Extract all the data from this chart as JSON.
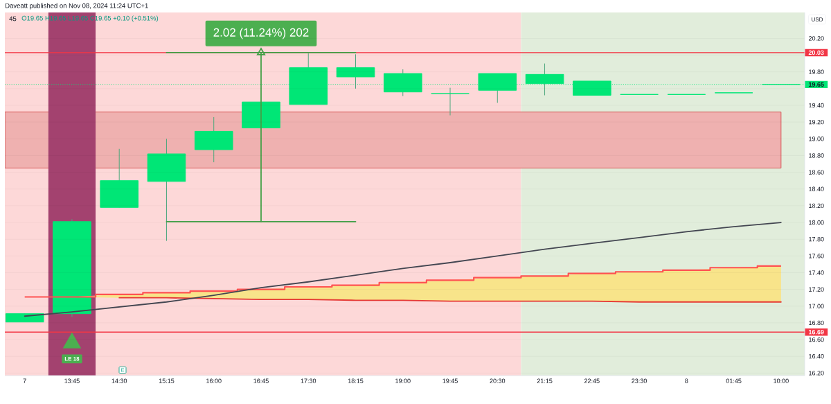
{
  "chart_data": {
    "type": "candlestick",
    "title": "45",
    "subtitle": "O19.65 H19.65 L19.65 C19.65 +0.10 (+0.51%)",
    "ylabel": "USD",
    "categories": [
      "7",
      "13:45",
      "14:30",
      "15:15",
      "16:00",
      "16:45",
      "17:30",
      "18:15",
      "19:00",
      "19:45",
      "20:30",
      "21:15",
      "22:45",
      "23:30",
      "8",
      "01:45",
      "10:00"
    ],
    "ohlc": [
      [
        16.81,
        16.91,
        16.81,
        16.91
      ],
      [
        16.91,
        18.04,
        16.87,
        18.01
      ],
      [
        18.18,
        18.88,
        18.18,
        18.5
      ],
      [
        18.49,
        19.0,
        17.78,
        18.82
      ],
      [
        18.87,
        19.26,
        18.72,
        19.09
      ],
      [
        19.13,
        19.44,
        19.13,
        19.44
      ],
      [
        19.41,
        20.02,
        19.41,
        19.85
      ],
      [
        19.74,
        20.01,
        19.6,
        19.85
      ],
      [
        19.56,
        19.83,
        19.51,
        19.78
      ],
      [
        19.54,
        19.61,
        19.28,
        19.54
      ],
      [
        19.58,
        19.78,
        19.43,
        19.78
      ],
      [
        19.66,
        19.9,
        19.52,
        19.77
      ],
      [
        19.52,
        19.69,
        19.52,
        19.69
      ],
      [
        19.53,
        19.53,
        19.53,
        19.53
      ],
      [
        19.53,
        19.53,
        19.53,
        19.53
      ],
      [
        19.55,
        19.55,
        19.55,
        19.55
      ],
      [
        19.65,
        19.65,
        19.65,
        19.65
      ]
    ],
    "color": "#00e676",
    "series": [
      {
        "type": "step",
        "color": "#ff5252",
        "values": [
          17.11,
          17.11,
          17.14,
          17.16,
          17.18,
          17.2,
          17.23,
          17.25,
          17.28,
          17.31,
          17.34,
          17.36,
          17.39,
          17.41,
          17.43,
          17.46,
          17.48
        ],
        "lower": [
          17.11,
          17.11,
          17.1,
          17.1,
          17.09,
          17.08,
          17.08,
          17.07,
          17.07,
          17.06,
          17.06,
          17.06,
          17.06,
          17.05,
          17.05,
          17.05,
          17.05
        ],
        "upper": [
          17.11,
          17.11,
          17.14,
          17.16,
          17.18,
          17.2,
          17.23,
          17.25,
          17.28,
          17.31,
          17.34,
          17.36,
          17.39,
          17.41,
          17.43,
          17.46,
          17.48
        ]
      },
      {
        "type": "line",
        "color": "#e53935",
        "values": [
          null,
          null,
          17.1,
          17.1,
          17.09,
          17.08,
          17.08,
          17.07,
          17.07,
          17.06,
          17.06,
          17.06,
          17.06,
          17.05,
          17.05,
          17.05,
          17.05
        ]
      },
      {
        "type": "line",
        "color": "#434651",
        "values": [
          16.88,
          16.93,
          16.99,
          17.05,
          17.13,
          17.22,
          17.29,
          17.37,
          17.45,
          17.52,
          17.6,
          17.68,
          17.75,
          17.82,
          17.89,
          17.95,
          18.0
        ]
      },
      {
        "type": "line",
        "color": "#43a047",
        "x": [
          "15:15",
          "18:15"
        ],
        "values": [
          18.01,
          18.01
        ]
      },
      {
        "type": "line",
        "color": "#43a047",
        "x": [
          "15:15",
          "18:15"
        ],
        "values": [
          20.03,
          20.03
        ]
      },
      {
        "type": "scatter",
        "color": "#43a047",
        "marker": "triangle",
        "x": [
          "16:45"
        ],
        "values": [
          20.03
        ],
        "errors": [
          [
            18.01,
            20.03
          ]
        ]
      },
      {
        "type": "scatter",
        "color": "#4caf50",
        "marker": "triangle",
        "x": [
          "13:45"
        ],
        "values": [
          16.56
        ]
      }
    ],
    "ylim": [
      16.17,
      20.51
    ],
    "yticks": [
      {
        "value": 16.2,
        "label": "16.20"
      },
      {
        "value": 16.4,
        "label": "16.40"
      },
      {
        "value": 16.6,
        "label": "16.60"
      },
      {
        "value": 16.8,
        "label": "16.80"
      },
      {
        "value": 17.0,
        "label": "17.00"
      },
      {
        "value": 17.2,
        "label": "17.20"
      },
      {
        "value": 17.4,
        "label": "17.40"
      },
      {
        "value": 17.6,
        "label": "17.60"
      },
      {
        "value": 17.8,
        "label": "17.80"
      },
      {
        "value": 18.0,
        "label": "18.00"
      },
      {
        "value": 18.2,
        "label": "18.20"
      },
      {
        "value": 18.4,
        "label": "18.40"
      },
      {
        "value": 18.6,
        "label": "18.60"
      },
      {
        "value": 18.8,
        "label": "18.80"
      },
      {
        "value": 19.0,
        "label": "19.00"
      },
      {
        "value": 19.2,
        "label": "19.20"
      },
      {
        "value": 19.4,
        "label": "19.40"
      },
      {
        "value": 19.6,
        "label": null
      },
      {
        "value": 19.8,
        "label": "19.80"
      },
      {
        "value": 20.0,
        "label": null
      },
      {
        "value": 20.2,
        "label": "20.20"
      }
    ],
    "grid": "y",
    "ref_lines": [
      {
        "axis": "y",
        "value": 20.03,
        "label": "20.03",
        "color": "#f23645",
        "line_style": "solid"
      },
      {
        "axis": "y",
        "value": 16.69,
        "label": "16.69",
        "color": "#f23645",
        "line_style": "solid"
      },
      {
        "axis": "y",
        "value": 19.65,
        "label": "19.65",
        "color": "#00e676",
        "line_style": "dotted"
      }
    ],
    "bands": [
      {
        "axis": "x",
        "from": "7",
        "to": "20:30",
        "color": "#fdd8d8"
      },
      {
        "axis": "x",
        "from": "21:15",
        "to": "10:00",
        "color": "#e1eddb"
      },
      {
        "axis": "y",
        "from": 18.65,
        "to": 19.32,
        "color": "#efb1b0"
      },
      {
        "axis": "x",
        "from": "13:45",
        "to": "13:45",
        "color": "#a3426f"
      }
    ],
    "annotations": [
      "Daveatt published on Nov 08, 2024 11:24 UTC+1",
      {
        "text": "2.02 (11.24%) 202",
        "x": "16:45",
        "y": 20.03
      },
      {
        "text": "LE 18",
        "x": "13:45",
        "y": 16.37
      },
      "E"
    ]
  }
}
